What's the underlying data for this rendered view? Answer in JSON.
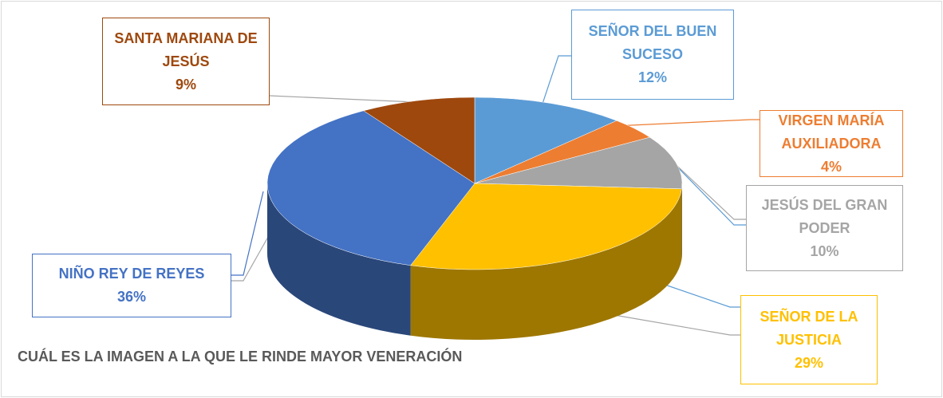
{
  "chart_data": {
    "type": "pie",
    "title": "CUÁL ES LA IMAGEN A LA QUE LE RINDE MAYOR VENERACIÓN",
    "categories": [
      "SEÑOR DEL BUEN SUCESO",
      "VIRGEN MARÍA AUXILIADORA",
      "JESÚS DEL GRAN PODER",
      "SEÑOR DE LA JUSTICIA",
      "NIÑO REY DE REYES",
      "SANTA MARIANA DE JESÚS"
    ],
    "values": [
      12,
      4,
      10,
      29,
      36,
      9
    ],
    "value_labels": [
      "12%",
      "4%",
      "10%",
      "29%",
      "36%",
      "9%"
    ],
    "colors": [
      "#5b9bd5",
      "#ed7d31",
      "#a5a5a5",
      "#ffc000",
      "#4472c4",
      "#9e480e"
    ]
  }
}
